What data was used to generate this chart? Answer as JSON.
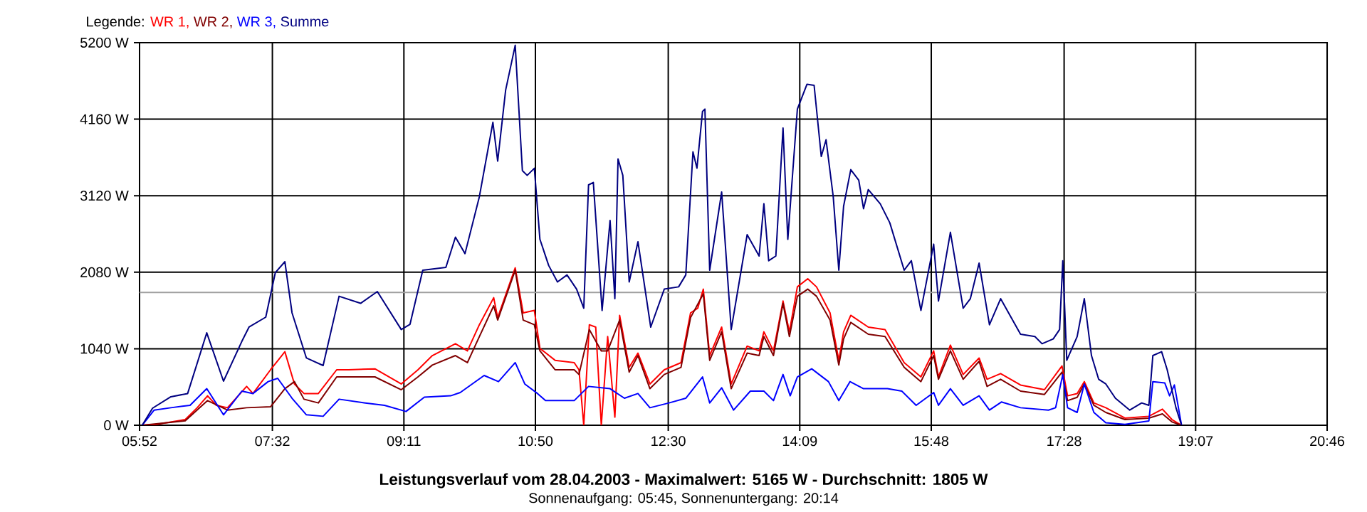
{
  "chart_data": {
    "type": "line",
    "title": "Leistungsverlauf vom 28.04.2003 - Maximalwert: 5165 W - Durchschnitt: 1805 W",
    "subtitle": "Sonnenaufgang: 05:45, Sonnenuntergang: 20:14",
    "legend_title": "Legende:",
    "legend": "top left",
    "grid": true,
    "xlim": [
      5.8667,
      20.7667
    ],
    "ylim": [
      0,
      5200
    ],
    "xticks": [
      {
        "value": 5.8667,
        "label": "05:52"
      },
      {
        "value": 7.5333,
        "label": "07:32"
      },
      {
        "value": 9.1833,
        "label": "09:11"
      },
      {
        "value": 10.8333,
        "label": "10:50"
      },
      {
        "value": 12.5,
        "label": "12:30"
      },
      {
        "value": 14.15,
        "label": "14:09"
      },
      {
        "value": 15.8,
        "label": "15:48"
      },
      {
        "value": 17.4667,
        "label": "17:28"
      },
      {
        "value": 19.1167,
        "label": "19:07"
      },
      {
        "value": 20.7667,
        "label": "20:46"
      }
    ],
    "yticks": [
      {
        "value": 0,
        "label": "0 W"
      },
      {
        "value": 1040,
        "label": "1040 W"
      },
      {
        "value": 2080,
        "label": "2080 W"
      },
      {
        "value": 3120,
        "label": "3120 W"
      },
      {
        "value": 4160,
        "label": "4160 W"
      },
      {
        "value": 5200,
        "label": "5200 W"
      }
    ],
    "ref_lines": [
      {
        "axis": "y",
        "value": 1805,
        "color": "#a0a0a0"
      }
    ],
    "series": [
      {
        "name": "WR 1,",
        "color": "#ff0000",
        "x": [
          5.9,
          6.08,
          6.44,
          6.59,
          6.72,
          6.83,
          6.97,
          7.21,
          7.29,
          7.51,
          7.69,
          7.81,
          7.93,
          8.11,
          8.34,
          8.49,
          8.82,
          9.15,
          9.36,
          9.54,
          9.83,
          9.98,
          10.13,
          10.31,
          10.36,
          10.58,
          10.68,
          10.82,
          10.89,
          11.08,
          11.32,
          11.38,
          11.44,
          11.51,
          11.59,
          11.66,
          11.74,
          11.83,
          11.89,
          12.01,
          12.12,
          12.27,
          12.45,
          12.66,
          12.78,
          12.87,
          12.94,
          13.02,
          13.17,
          13.29,
          13.49,
          13.64,
          13.7,
          13.82,
          13.94,
          14.02,
          14.12,
          14.25,
          14.36,
          14.53,
          14.64,
          14.7,
          14.79,
          15.01,
          15.22,
          15.46,
          15.67,
          15.83,
          15.89,
          16.04,
          16.2,
          16.4,
          16.5,
          16.67,
          16.92,
          17.22,
          17.44,
          17.51,
          17.63,
          17.72,
          17.84,
          17.99,
          18.23,
          18.53,
          18.7,
          18.82,
          18.94
        ],
        "values": [
          0,
          13,
          77,
          238,
          400,
          271,
          238,
          528,
          431,
          754,
          999,
          561,
          431,
          431,
          754,
          754,
          767,
          561,
          754,
          947,
          1108,
          1011,
          1366,
          1734,
          1463,
          2140,
          1527,
          1560,
          1044,
          883,
          851,
          754,
          0,
          1366,
          1334,
          0,
          1205,
          110,
          1494,
          787,
          980,
          561,
          754,
          851,
          1527,
          1591,
          1850,
          947,
          1334,
          561,
          1076,
          1011,
          1270,
          1011,
          1688,
          1270,
          1881,
          1991,
          1881,
          1527,
          883,
          1270,
          1494,
          1334,
          1301,
          851,
          657,
          1011,
          657,
          1089,
          690,
          914,
          625,
          702,
          547,
          483,
          806,
          400,
          431,
          593,
          303,
          238,
          97,
          122,
          219,
          77,
          0
        ]
      },
      {
        "name": "WR 2,",
        "color": "#800000",
        "x": [
          5.9,
          6.44,
          6.72,
          6.97,
          7.21,
          7.51,
          7.69,
          7.81,
          7.93,
          8.11,
          8.34,
          8.82,
          9.15,
          9.36,
          9.54,
          9.83,
          9.98,
          10.13,
          10.31,
          10.36,
          10.58,
          10.68,
          10.82,
          10.89,
          11.08,
          11.32,
          11.38,
          11.51,
          11.66,
          11.74,
          11.89,
          12.01,
          12.12,
          12.27,
          12.45,
          12.66,
          12.78,
          12.94,
          13.02,
          13.17,
          13.29,
          13.49,
          13.64,
          13.7,
          13.82,
          13.94,
          14.02,
          14.12,
          14.25,
          14.36,
          14.53,
          14.64,
          14.7,
          14.79,
          15.01,
          15.22,
          15.46,
          15.67,
          15.83,
          15.89,
          16.04,
          16.2,
          16.4,
          16.5,
          16.67,
          16.92,
          17.22,
          17.44,
          17.51,
          17.63,
          17.72,
          17.84,
          17.99,
          18.23,
          18.53,
          18.7,
          18.82,
          18.94
        ],
        "values": [
          0,
          60,
          335,
          206,
          238,
          251,
          497,
          593,
          354,
          303,
          657,
          657,
          483,
          657,
          818,
          947,
          851,
          1205,
          1624,
          1430,
          2107,
          1430,
          1366,
          1011,
          754,
          754,
          690,
          1301,
          1011,
          1011,
          1430,
          722,
          947,
          497,
          690,
          787,
          1463,
          1785,
          883,
          1270,
          497,
          980,
          947,
          1205,
          947,
          1657,
          1205,
          1753,
          1850,
          1753,
          1430,
          818,
          1173,
          1398,
          1237,
          1205,
          787,
          593,
          947,
          625,
          1011,
          625,
          870,
          528,
          625,
          464,
          419,
          722,
          335,
          380,
          561,
          271,
          174,
          77,
          97,
          155,
          45,
          0
        ]
      },
      {
        "name": "WR 3,",
        "color": "#0000ff",
        "x": [
          5.9,
          6.05,
          6.26,
          6.5,
          6.71,
          6.92,
          7.15,
          7.29,
          7.48,
          7.6,
          7.78,
          7.96,
          8.17,
          8.37,
          8.7,
          8.94,
          9.21,
          9.44,
          9.77,
          9.89,
          10.19,
          10.37,
          10.58,
          10.7,
          10.86,
          10.96,
          11.32,
          11.5,
          11.77,
          11.95,
          12.12,
          12.27,
          12.51,
          12.72,
          12.93,
          13.02,
          13.17,
          13.32,
          13.53,
          13.7,
          13.82,
          13.94,
          14.03,
          14.12,
          14.3,
          14.51,
          14.64,
          14.78,
          14.95,
          15.25,
          15.43,
          15.61,
          15.83,
          15.89,
          16.04,
          16.2,
          16.4,
          16.53,
          16.68,
          16.92,
          17.27,
          17.36,
          17.45,
          17.51,
          17.63,
          17.72,
          17.84,
          17.99,
          18.23,
          18.53,
          18.58,
          18.73,
          18.79,
          18.85,
          18.94
        ],
        "values": [
          0,
          206,
          238,
          271,
          497,
          142,
          464,
          431,
          593,
          638,
          367,
          142,
          122,
          354,
          303,
          271,
          187,
          381,
          400,
          445,
          677,
          593,
          851,
          561,
          431,
          335,
          335,
          528,
          497,
          367,
          431,
          238,
          303,
          367,
          657,
          303,
          509,
          206,
          464,
          464,
          335,
          690,
          400,
          657,
          767,
          593,
          335,
          593,
          497,
          497,
          464,
          271,
          445,
          271,
          497,
          271,
          400,
          206,
          316,
          238,
          206,
          238,
          690,
          238,
          174,
          561,
          174,
          33,
          13,
          58,
          593,
          574,
          400,
          547,
          0
        ]
      },
      {
        "name": "Summe",
        "color": "#000080",
        "x": [
          5.9,
          6.03,
          6.26,
          6.47,
          6.71,
          6.92,
          7.15,
          7.24,
          7.45,
          7.57,
          7.69,
          7.78,
          7.96,
          8.17,
          8.37,
          8.64,
          8.85,
          9.15,
          9.26,
          9.42,
          9.71,
          9.83,
          9.95,
          10.13,
          10.3,
          10.36,
          10.46,
          10.58,
          10.67,
          10.73,
          10.82,
          10.89,
          11.0,
          11.11,
          11.23,
          11.35,
          11.44,
          11.5,
          11.56,
          11.67,
          11.77,
          11.83,
          11.87,
          11.93,
          12.01,
          12.12,
          12.28,
          12.45,
          12.63,
          12.72,
          12.81,
          12.86,
          12.93,
          12.96,
          13.02,
          13.17,
          13.29,
          13.49,
          13.64,
          13.7,
          13.76,
          13.85,
          13.94,
          14.0,
          14.12,
          14.24,
          14.33,
          14.42,
          14.48,
          14.57,
          14.64,
          14.7,
          14.79,
          14.89,
          14.95,
          15.01,
          15.16,
          15.28,
          15.46,
          15.55,
          15.67,
          15.83,
          15.89,
          16.04,
          16.2,
          16.29,
          16.4,
          16.53,
          16.67,
          16.92,
          17.1,
          17.19,
          17.33,
          17.41,
          17.45,
          17.5,
          17.63,
          17.72,
          17.81,
          17.9,
          17.99,
          18.11,
          18.29,
          18.44,
          18.53,
          18.58,
          18.69,
          18.76,
          18.87,
          18.94
        ],
        "values": [
          0,
          232,
          387,
          431,
          1256,
          599,
          1140,
          1334,
          1469,
          2074,
          2223,
          1527,
          914,
          812,
          1753,
          1657,
          1817,
          1301,
          1372,
          2107,
          2146,
          2557,
          2333,
          3106,
          4117,
          3590,
          4556,
          5165,
          3460,
          3396,
          3493,
          2527,
          2171,
          1947,
          2043,
          1850,
          1591,
          3267,
          3300,
          1560,
          2784,
          1720,
          3620,
          3396,
          1947,
          2494,
          1334,
          1850,
          1881,
          2043,
          3717,
          3493,
          4266,
          4297,
          2107,
          3170,
          1301,
          2590,
          2300,
          3010,
          2236,
          2300,
          4040,
          2527,
          4297,
          4634,
          4620,
          3653,
          3880,
          3106,
          2107,
          2977,
          3474,
          3331,
          2944,
          3203,
          3010,
          2751,
          2107,
          2236,
          1560,
          2461,
          1688,
          2623,
          1591,
          1720,
          2204,
          1366,
          1720,
          1237,
          1205,
          1108,
          1173,
          1301,
          2236,
          883,
          1205,
          1720,
          947,
          625,
          561,
          367,
          206,
          303,
          271,
          947,
          999,
          754,
          238,
          0
        ]
      }
    ]
  }
}
